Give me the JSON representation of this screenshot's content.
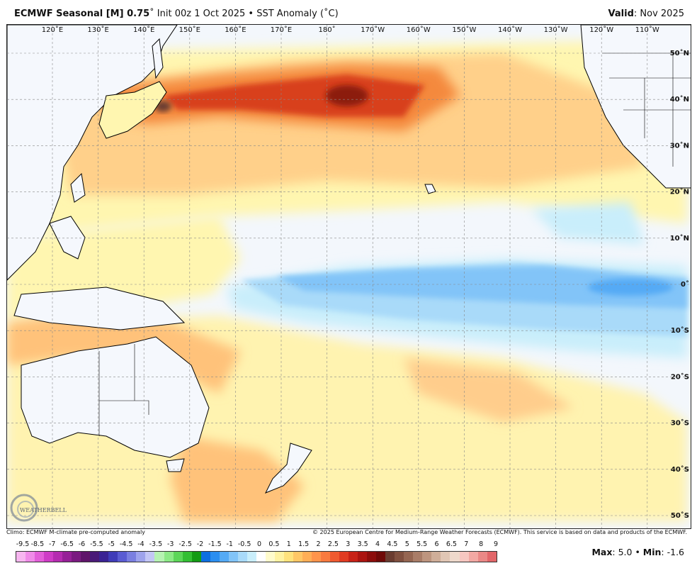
{
  "header": {
    "title_bold": "ECMWF Seasonal [M] 0.75",
    "title_rest": "˚ Init 00z 1 Oct 2025 • SST Anomaly (˚C)",
    "valid_label": "Valid",
    "valid_value": ": Nov 2025"
  },
  "map": {
    "lon_labels": [
      "120˚E",
      "130˚E",
      "140˚E",
      "150˚E",
      "160˚E",
      "170˚E",
      "180˚",
      "170˚W",
      "160˚W",
      "150˚W",
      "140˚W",
      "130˚W",
      "120˚W",
      "110˚W"
    ],
    "lat_labels": [
      "50˚N",
      "40˚N",
      "30˚N",
      "20˚N",
      "10˚N",
      "0˚",
      "10˚S",
      "20˚S",
      "30˚S",
      "40˚S",
      "50˚S"
    ],
    "logo_text": "WEATHERBELL"
  },
  "footer": {
    "climo": "Climo: ECMWF M-climate pre-computed anomaly",
    "copyright": "© 2025 European Centre for Medium-Range Weather Forecasts (ECMWF). This service is based on data and products of the ECMWF."
  },
  "colorbar": {
    "labels": [
      "-9.5",
      "-8.5",
      "-7",
      "-6.5",
      "-6",
      "-5.5",
      "-5",
      "-4.5",
      "-4",
      "-3.5",
      "-3",
      "-2.5",
      "-2",
      "-1.5",
      "-1",
      "-0.5",
      "0",
      "0.5",
      "1",
      "1.5",
      "2",
      "2.5",
      "3",
      "3.5",
      "4",
      "4.5",
      "5",
      "5.5",
      "6",
      "6.5",
      "7",
      "8",
      "9"
    ],
    "colors": [
      "#f7b6f0",
      "#f08be8",
      "#e35fd9",
      "#cf3cc6",
      "#b52bb0",
      "#962097",
      "#7a1a80",
      "#5f146a",
      "#4a1a78",
      "#3a2394",
      "#3f3cb8",
      "#5a5cd2",
      "#7a7fe0",
      "#9ea3ec",
      "#c3c6f5",
      "#b6f2b2",
      "#8ce986",
      "#5cd658",
      "#33bf33",
      "#139b14",
      "#0d6fe0",
      "#2b8ef0",
      "#55aaf5",
      "#82c4f8",
      "#a9daf9",
      "#c9eefb",
      "#ffffff",
      "#fffbcc",
      "#fff2a2",
      "#ffe27c",
      "#ffc766",
      "#ffae57",
      "#ff944c",
      "#f97a3f",
      "#ef5a30",
      "#e03b22",
      "#c82217",
      "#ab1410",
      "#8c0d0b",
      "#6f0a08",
      "#6a3c30",
      "#80503f",
      "#956652",
      "#a97d68",
      "#bd957f",
      "#cfae99",
      "#e0c6b4",
      "#eed9cb",
      "#f7c7c1",
      "#f2a8a3",
      "#ea8886",
      "#e26669"
    ]
  },
  "stats": {
    "max_label": "Max",
    "max_value": ": 5.0 • ",
    "min_label": "Min",
    "min_value": ": -1.6"
  }
}
